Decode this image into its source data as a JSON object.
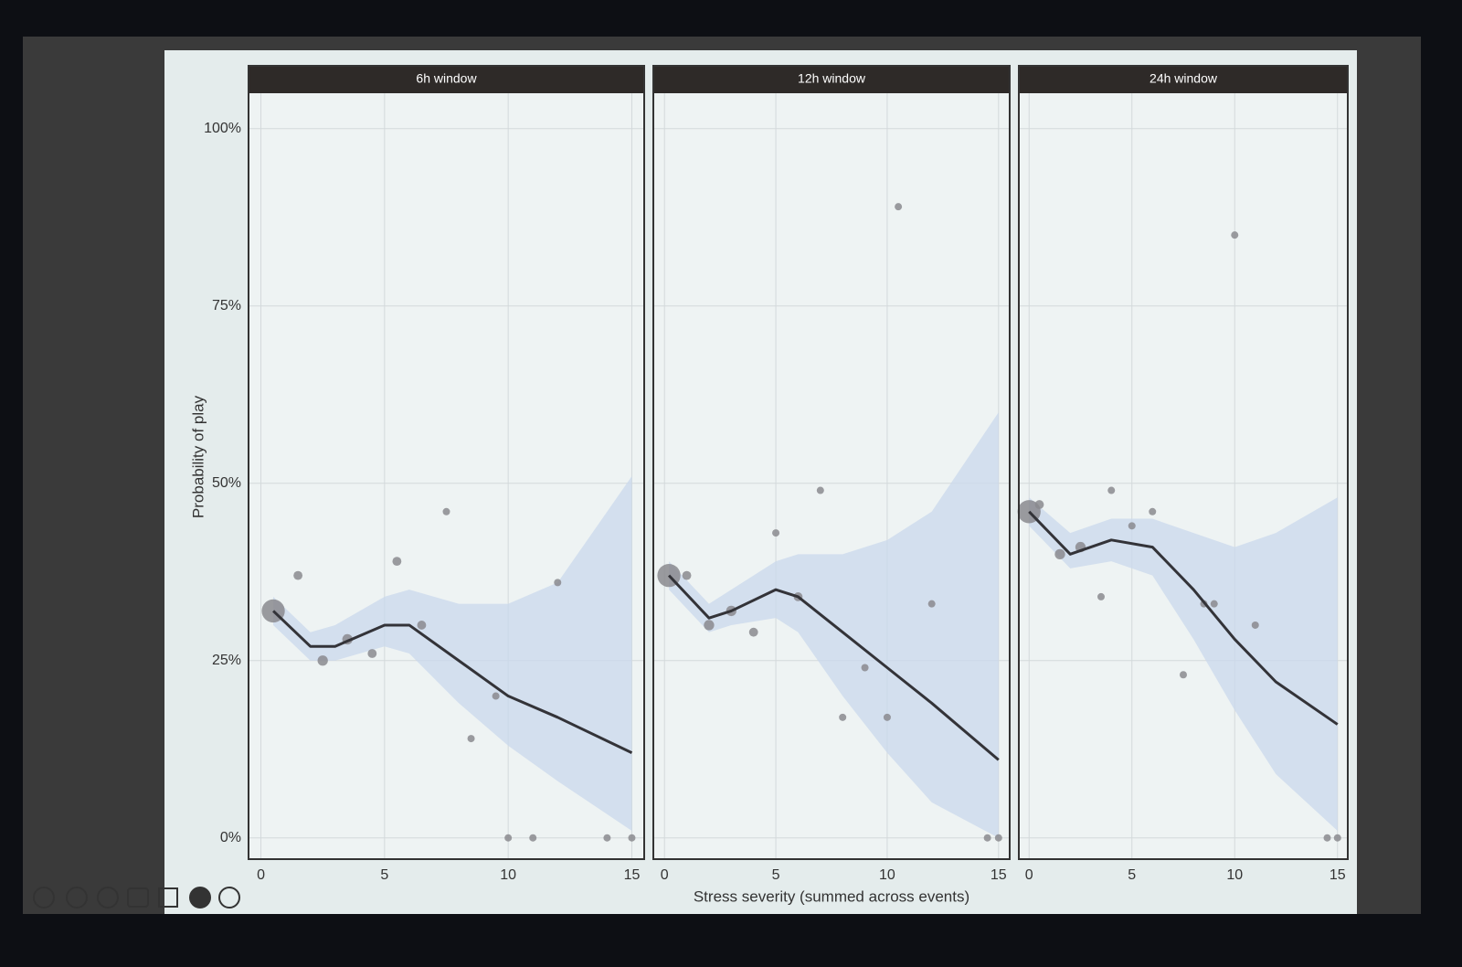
{
  "chart_data": [
    {
      "type": "scatter",
      "title": "6h window",
      "ylabel": "Probability of play",
      "xlim": [
        -0.5,
        15.5
      ],
      "xticks": [
        0,
        5,
        10,
        15
      ],
      "ylim": [
        -3,
        105
      ],
      "yticks": [
        {
          "value": 0,
          "label": "0%"
        },
        {
          "value": 25,
          "label": "25%"
        },
        {
          "value": 50,
          "label": "50%"
        },
        {
          "value": 75,
          "label": "75%"
        },
        {
          "value": 100,
          "label": "100%"
        }
      ],
      "grid": true,
      "point_color": "#8a8a8e",
      "line_color": "#333338",
      "band_color": "#c9d8ec",
      "points": {
        "x": [
          0.5,
          1.5,
          2.5,
          3.5,
          4.5,
          5.5,
          6.5,
          7.5,
          8.5,
          9.5,
          10,
          11,
          12,
          14,
          15
        ],
        "values": [
          32,
          37,
          25,
          28,
          26,
          39,
          30,
          46,
          14,
          20,
          0,
          0,
          36,
          0,
          0
        ],
        "sizes": [
          10,
          1.5,
          2,
          2,
          1.5,
          1.5,
          1.5,
          1,
          1,
          1,
          1,
          1,
          1,
          1,
          1
        ]
      },
      "smooth": {
        "x": [
          0.5,
          2,
          3,
          5,
          6,
          8,
          10,
          12,
          15
        ],
        "values": [
          32,
          27,
          27,
          30,
          30,
          25,
          20,
          17,
          12
        ],
        "lower": [
          30,
          25,
          25,
          27,
          26,
          19,
          13,
          8,
          1
        ],
        "upper": [
          34,
          29,
          30,
          34,
          35,
          33,
          33,
          36,
          51
        ]
      }
    },
    {
      "type": "scatter",
      "title": "12h window",
      "xlabel": "Stress severity (summed across events)",
      "xlim": [
        -0.5,
        15.5
      ],
      "xticks": [
        0,
        5,
        10,
        15
      ],
      "ylim": [
        -3,
        105
      ],
      "yticks": [
        0,
        25,
        50,
        75,
        100
      ],
      "grid": true,
      "point_color": "#8a8a8e",
      "line_color": "#333338",
      "band_color": "#c9d8ec",
      "points": {
        "x": [
          0.2,
          1,
          2,
          3,
          4,
          5,
          6,
          7,
          8,
          9,
          10,
          10.5,
          12,
          14.5,
          15
        ],
        "values": [
          37,
          37,
          30,
          32,
          29,
          43,
          34,
          49,
          17,
          24,
          17,
          89,
          33,
          0,
          0
        ],
        "sizes": [
          10,
          1.5,
          2,
          2,
          1.5,
          1,
          1.5,
          1,
          1,
          1,
          1,
          1,
          1,
          1,
          1
        ]
      },
      "smooth": {
        "x": [
          0.2,
          2,
          3,
          5,
          6,
          8,
          10,
          12,
          15
        ],
        "values": [
          37,
          31,
          32,
          35,
          34,
          29,
          24,
          19,
          11
        ],
        "lower": [
          35,
          29,
          30,
          31,
          29,
          20,
          12,
          5,
          0
        ],
        "upper": [
          39,
          33,
          35,
          39,
          40,
          40,
          42,
          46,
          60
        ]
      }
    },
    {
      "type": "scatter",
      "title": "24h window",
      "xlim": [
        -0.5,
        15.5
      ],
      "xticks": [
        0,
        5,
        10,
        15
      ],
      "ylim": [
        -3,
        105
      ],
      "yticks": [
        0,
        25,
        50,
        75,
        100
      ],
      "grid": true,
      "point_color": "#8a8a8e",
      "line_color": "#333338",
      "band_color": "#c9d8ec",
      "points": {
        "x": [
          0,
          0.5,
          1.5,
          2.5,
          3.5,
          4,
          5,
          6,
          7.5,
          8.5,
          9,
          10,
          11,
          14.5,
          15
        ],
        "values": [
          46,
          47,
          40,
          41,
          34,
          49,
          44,
          46,
          23,
          33,
          33,
          85,
          30,
          0,
          0
        ],
        "sizes": [
          10,
          1.5,
          2,
          2,
          1,
          1,
          1,
          1,
          1,
          1,
          1,
          1,
          1,
          1,
          1
        ]
      },
      "smooth": {
        "x": [
          0,
          2,
          4,
          6,
          8,
          10,
          12,
          15
        ],
        "values": [
          46,
          40,
          42,
          41,
          35,
          28,
          22,
          16
        ],
        "lower": [
          44,
          38,
          39,
          37,
          28,
          18,
          9,
          1
        ],
        "upper": [
          48,
          43,
          45,
          45,
          43,
          41,
          43,
          48
        ]
      }
    }
  ]
}
